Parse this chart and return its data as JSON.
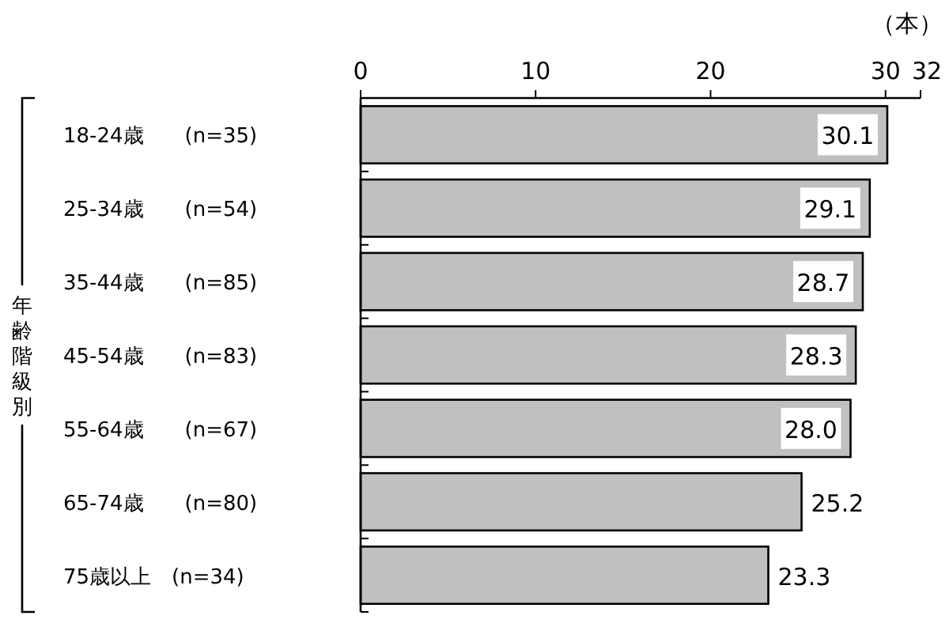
{
  "chart_data": {
    "type": "bar",
    "orientation": "horizontal",
    "xlabel": "（本）",
    "ylabel": "年齢階級別",
    "categories": [
      "18-24歳　　(n=35)",
      "25-34歳　　(n=54)",
      "35-44歳　　(n=85)",
      "45-54歳　　(n=83)",
      "55-64歳　　(n=67)",
      "65-74歳　　(n=80)",
      "75歳以上　(n=34)"
    ],
    "values": [
      30.1,
      29.1,
      28.7,
      28.3,
      28.0,
      25.2,
      23.3
    ],
    "value_labels": [
      "30.1",
      "29.1",
      "28.7",
      "28.3",
      "28.0",
      "25.2",
      "23.3"
    ],
    "color": "#c0c0c0",
    "xlim": [
      0,
      32
    ],
    "xticks": [
      0,
      10,
      20,
      30,
      32
    ],
    "grid": false
  }
}
